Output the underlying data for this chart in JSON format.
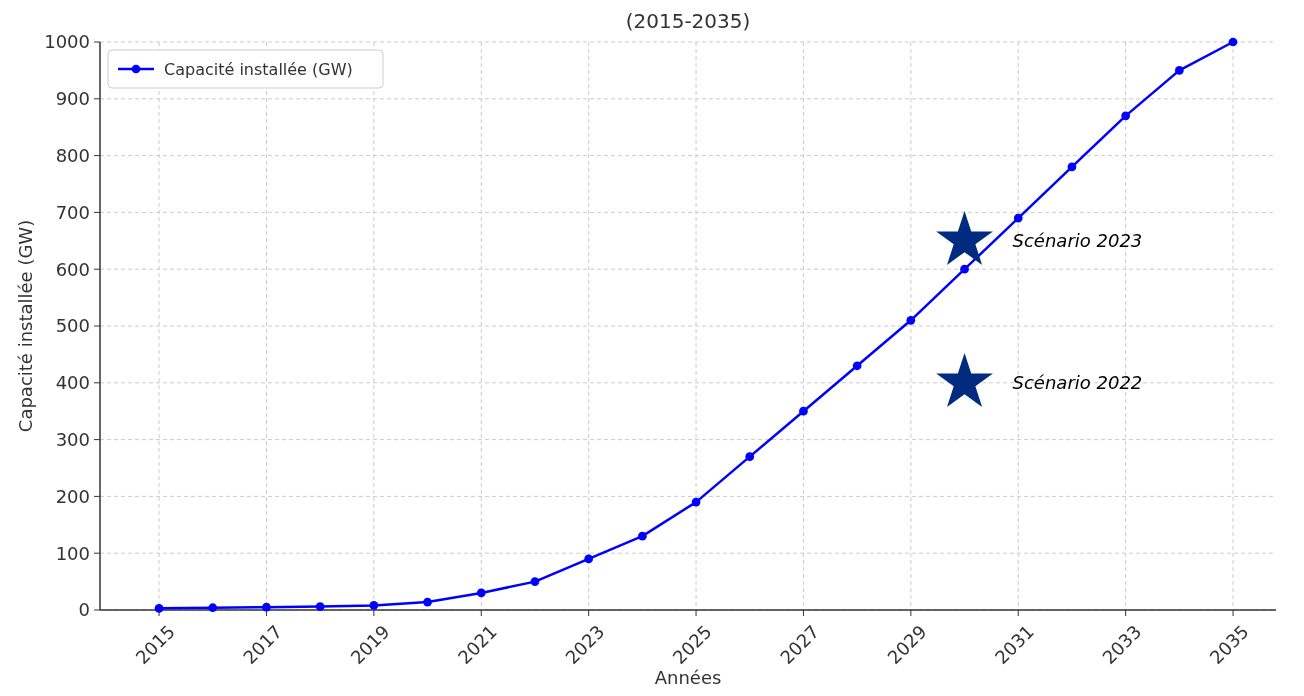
{
  "chart_data": {
    "type": "line",
    "title": "(2015-2035)",
    "xlabel": "Années",
    "ylabel": "Capacité installée (GW)",
    "x": [
      2015,
      2016,
      2017,
      2018,
      2019,
      2020,
      2021,
      2022,
      2023,
      2024,
      2025,
      2026,
      2027,
      2028,
      2029,
      2030,
      2031,
      2032,
      2033,
      2034,
      2035
    ],
    "series": [
      {
        "name": "Capacité installée (GW)",
        "color": "#0000ff",
        "marker": "circle",
        "values": [
          3,
          4,
          5,
          6,
          8,
          14,
          30,
          50,
          90,
          130,
          190,
          270,
          350,
          430,
          510,
          600,
          690,
          780,
          870,
          950,
          1000
        ]
      },
      {
        "type": "scatter",
        "color": "#002b7f",
        "marker": "star",
        "x": [
          2030
        ],
        "values": [
          650
        ]
      },
      {
        "type": "scatter",
        "color": "#002b7f",
        "marker": "star",
        "x": [
          2030
        ],
        "values": [
          400
        ]
      }
    ],
    "annotations": [
      {
        "text": "Scénario 2023",
        "x": 2030,
        "y": 650
      },
      {
        "text": "Scénario 2022",
        "x": 2030,
        "y": 400
      }
    ],
    "xlim": [
      2013.9,
      2035.8
    ],
    "xticks": [
      2015,
      2017,
      2019,
      2021,
      2023,
      2025,
      2027,
      2029,
      2031,
      2033,
      2035
    ],
    "ylim": [
      0,
      1000
    ],
    "yticks": [
      0,
      100,
      200,
      300,
      400,
      500,
      600,
      700,
      800,
      900,
      1000
    ],
    "grid": true,
    "legend": "top left"
  }
}
